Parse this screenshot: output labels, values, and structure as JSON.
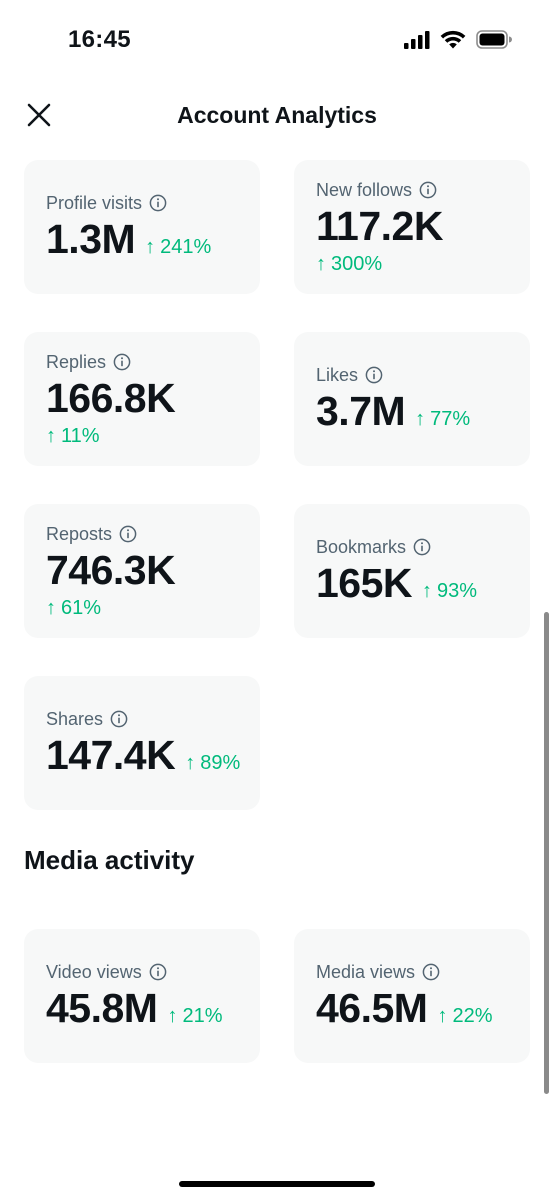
{
  "status_bar": {
    "time": "16:45",
    "icons": [
      "cellular-signal-icon",
      "wifi-icon",
      "battery-icon"
    ]
  },
  "header": {
    "title": "Account Analytics",
    "close_icon": "close-icon"
  },
  "metrics": {
    "profile_visits": {
      "label": "Profile visits",
      "value": "1.3M",
      "change": "241%"
    },
    "new_follows": {
      "label": "New follows",
      "value": "117.2K",
      "change": "300%"
    },
    "replies": {
      "label": "Replies",
      "value": "166.8K",
      "change": "11%"
    },
    "likes": {
      "label": "Likes",
      "value": "3.7M",
      "change": "77%"
    },
    "reposts": {
      "label": "Reposts",
      "value": "746.3K",
      "change": "61%"
    },
    "bookmarks": {
      "label": "Bookmarks",
      "value": "165K",
      "change": "93%"
    },
    "shares": {
      "label": "Shares",
      "value": "147.4K",
      "change": "89%"
    }
  },
  "media_activity": {
    "title": "Media activity",
    "video_views": {
      "label": "Video views",
      "value": "45.8M",
      "change": "21%"
    },
    "media_views": {
      "label": "Media views",
      "value": "46.5M",
      "change": "22%"
    }
  },
  "colors": {
    "positive": "#00ba7c",
    "card_bg": "#f7f8f8",
    "label": "#536471",
    "text": "#0f1419"
  },
  "change_arrow": "↑"
}
